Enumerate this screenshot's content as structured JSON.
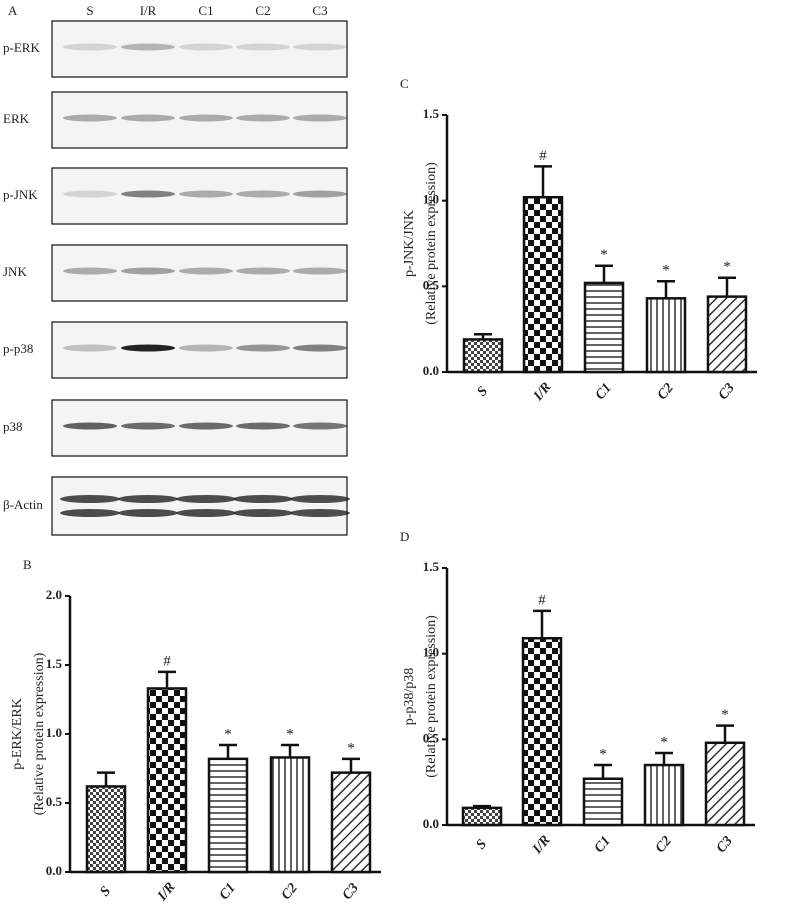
{
  "panel_label": "A",
  "blot": {
    "lanes": [
      "S",
      "I/R",
      "C1",
      "C2",
      "C3"
    ],
    "rows": [
      "p-ERK",
      "ERK",
      "p-JNK",
      "JNK",
      "p-p38",
      "p38",
      "β-Actin"
    ]
  },
  "chart_data": [
    {
      "type": "bar",
      "panel": "B",
      "ylabel": "p-ERK/ERK",
      "ylabel2": "(Relative protein expression)",
      "categories": [
        "S",
        "I/R",
        "C1",
        "C2",
        "C3"
      ],
      "values": [
        0.62,
        1.33,
        0.82,
        0.83,
        0.72
      ],
      "errors": [
        0.1,
        0.12,
        0.1,
        0.09,
        0.1
      ],
      "annotations": [
        null,
        "#",
        "*",
        "*",
        "*"
      ],
      "ylim": [
        0,
        2
      ],
      "yticks": [
        {
          "value": 0,
          "label": "0.0"
        },
        {
          "value": 0.5,
          "label": "0.5"
        },
        {
          "value": 1,
          "label": "1.0"
        },
        {
          "value": 1.5,
          "label": "1.5"
        },
        {
          "value": 2,
          "label": "2.0"
        }
      ]
    },
    {
      "type": "bar",
      "panel": "C",
      "ylabel": "p-JNK/JNK",
      "ylabel2": "(Relative protein expression)",
      "categories": [
        "S",
        "I/R",
        "C1",
        "C2",
        "C3"
      ],
      "values": [
        0.19,
        1.02,
        0.52,
        0.43,
        0.44
      ],
      "errors": [
        0.03,
        0.18,
        0.1,
        0.1,
        0.11
      ],
      "annotations": [
        null,
        "#",
        "*",
        "*",
        "*"
      ],
      "ylim": [
        0,
        1.5
      ],
      "yticks": [
        {
          "value": 0,
          "label": "0.0"
        },
        {
          "value": 0.5,
          "label": "0.5"
        },
        {
          "value": 1,
          "label": "1.0"
        },
        {
          "value": 1.5,
          "label": "1.5"
        }
      ]
    },
    {
      "type": "bar",
      "panel": "D",
      "ylabel": "p-p38/p38",
      "ylabel2": "(Relative protein expression)",
      "categories": [
        "S",
        "I/R",
        "C1",
        "C2",
        "C3"
      ],
      "values": [
        0.1,
        1.09,
        0.27,
        0.35,
        0.48
      ],
      "errors": [
        0.01,
        0.16,
        0.08,
        0.07,
        0.1
      ],
      "annotations": [
        null,
        "#",
        "*",
        "*",
        "*"
      ],
      "ylim": [
        0,
        1.5
      ],
      "yticks": [
        {
          "value": 0,
          "label": "0.0"
        },
        {
          "value": 0.5,
          "label": "0.5"
        },
        {
          "value": 1,
          "label": "1.0"
        },
        {
          "value": 1.5,
          "label": "1.5"
        }
      ]
    }
  ]
}
